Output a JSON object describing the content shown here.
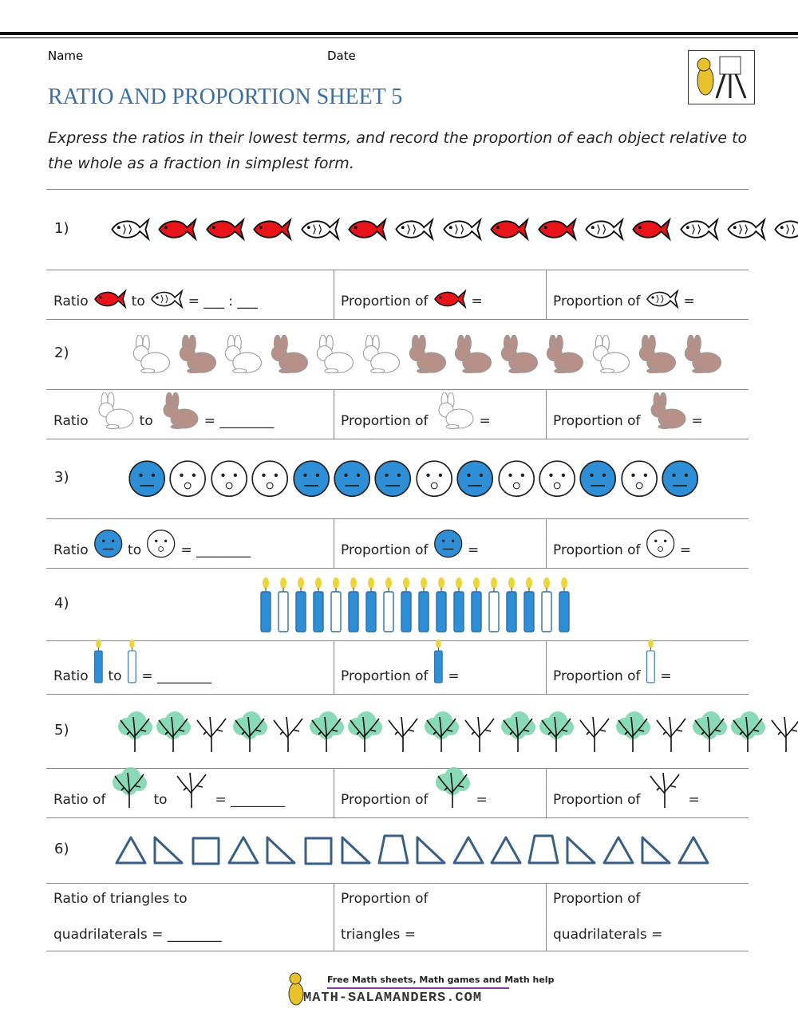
{
  "header": {
    "name_label": "Name",
    "date_label": "Date",
    "title": "RATIO AND PROPORTION SHEET 5",
    "instructions": "Express the ratios in their lowest terms, and record the proportion of each object relative to the whole as a fraction in simplest form."
  },
  "questions": [
    {
      "number": "1)",
      "cells": [
        [
          "Ratio",
          "to",
          "= ___ : ___"
        ],
        [
          "Proportion of",
          "="
        ],
        [
          "Proportion of",
          "="
        ]
      ]
    },
    {
      "number": "2)",
      "cells": [
        [
          "Ratio",
          "to",
          "= ________"
        ],
        [
          "Proportion of",
          "="
        ],
        [
          "Proportion of",
          "="
        ]
      ]
    },
    {
      "number": "3)",
      "cells": [
        [
          "Ratio",
          "to",
          "= ________"
        ],
        [
          "Proportion of",
          "="
        ],
        [
          "Proportion of",
          "="
        ]
      ]
    },
    {
      "number": "4)",
      "cells": [
        [
          "Ratio",
          "to",
          "= ________"
        ],
        [
          "Proportion of",
          "="
        ],
        [
          "Proportion of",
          "="
        ]
      ]
    },
    {
      "number": "5)",
      "cells": [
        [
          "Ratio of",
          "to",
          "= ________"
        ],
        [
          "Proportion of",
          "="
        ],
        [
          "Proportion of",
          "="
        ]
      ]
    },
    {
      "number": "6)",
      "cells": [
        [
          "Ratio of triangles to",
          "quadrilaterals = ________"
        ],
        [
          "Proportion of",
          "triangles ="
        ],
        [
          "Proportion of",
          "quadrilaterals ="
        ]
      ]
    }
  ],
  "footer": {
    "tagline": "Free Math sheets, Math games and Math help",
    "site": "MATH-SALAMANDERS.COM"
  }
}
